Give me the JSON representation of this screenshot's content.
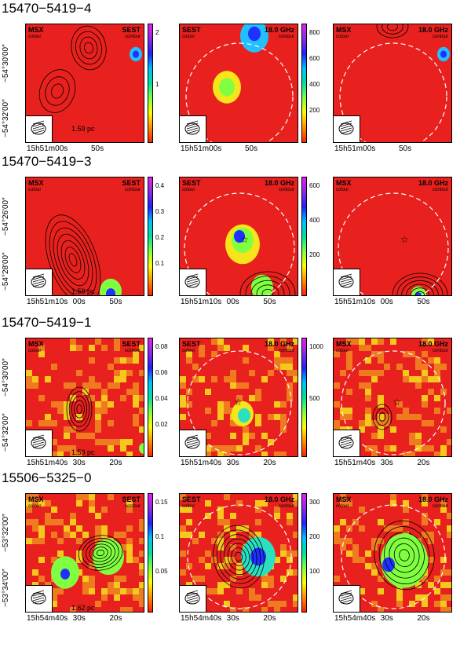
{
  "rows": [
    {
      "title": "15470−5419−4",
      "panels": [
        {
          "left_label": "MSX",
          "left_sub": "colour",
          "right_label": "SEST",
          "right_sub": "contour"
        },
        {
          "left_label": "SEST",
          "left_sub": "colour",
          "right_label": "18.0 GHz",
          "right_sub": "contour"
        },
        {
          "left_label": "MSX",
          "left_sub": "colour",
          "right_label": "18.0 GHz",
          "right_sub": "contour"
        }
      ],
      "colorbar1": [
        "2",
        "1"
      ],
      "colorbar2": [
        "800",
        "600",
        "400",
        "200"
      ],
      "scale_label": "1.59 pc",
      "y_ticks": [
        "−54°30′00″",
        "−54°32′00″"
      ],
      "x_ticks": [
        "15h51m00s",
        "50s"
      ]
    },
    {
      "title": "15470−5419−3",
      "panels": [
        {
          "left_label": "MSX",
          "left_sub": "colour",
          "right_label": "SEST",
          "right_sub": "contour"
        },
        {
          "left_label": "SEST",
          "left_sub": "colour",
          "right_label": "18.0 GHz",
          "right_sub": "contour"
        },
        {
          "left_label": "MSX",
          "left_sub": "colour",
          "right_label": "18.0 GHz",
          "right_sub": "contour"
        }
      ],
      "colorbar1": [
        "0.4",
        "0.3",
        "0.2",
        "0.1"
      ],
      "colorbar2": [
        "600",
        "400",
        "200"
      ],
      "scale_label": "1.59 pc",
      "y_ticks": [
        "−54°26′00″",
        "−54°28′00″"
      ],
      "x_ticks": [
        "15h51m10s",
        "00s",
        "50s"
      ]
    },
    {
      "title": "15470−5419−1",
      "panels": [
        {
          "left_label": "MSX",
          "left_sub": "colour",
          "right_label": "SEST",
          "right_sub": "contour"
        },
        {
          "left_label": "SEST",
          "left_sub": "colour",
          "right_label": "18.0 GHz",
          "right_sub": "contour"
        },
        {
          "left_label": "MSX",
          "left_sub": "colour",
          "right_label": "18.0 GHz",
          "right_sub": "contour"
        }
      ],
      "colorbar1": [
        "0.08",
        "0.06",
        "0.04",
        "0.02"
      ],
      "colorbar2": [
        "1000",
        "500"
      ],
      "scale_label": "1.59 pc",
      "y_ticks": [
        "−54°30′00″",
        "−54°32′00″"
      ],
      "x_ticks": [
        "15h51m40s",
        "30s",
        "20s"
      ]
    },
    {
      "title": "15506−5325−0",
      "panels": [
        {
          "left_label": "MSX",
          "left_sub": "colour",
          "right_label": "SEST",
          "right_sub": "contour"
        },
        {
          "left_label": "SEST",
          "left_sub": "colour",
          "right_label": "18.0 GHz",
          "right_sub": "contour"
        },
        {
          "left_label": "MSX",
          "left_sub": "colour",
          "right_label": "18.0 GHz",
          "right_sub": "contour"
        }
      ],
      "colorbar1": [
        "0.15",
        "0.1",
        "0.05"
      ],
      "colorbar2": [
        "300",
        "200",
        "100"
      ],
      "scale_label": "1.62 pc",
      "y_ticks": [
        "−53°32′00″",
        "−53°34′00″"
      ],
      "x_ticks": [
        "15h54m40s",
        "30s",
        "20s"
      ]
    }
  ],
  "colors": {
    "background": "#e8211e",
    "contour": "#000000",
    "circle": "#ffffff"
  }
}
